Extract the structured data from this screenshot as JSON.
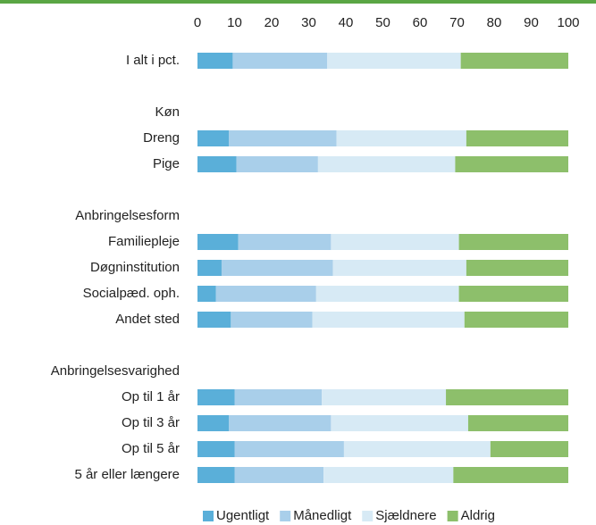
{
  "chart_data": {
    "type": "stacked-barh",
    "categories": [
      "I alt i pct.",
      null,
      "Køn",
      "Dreng",
      "Pige",
      null,
      "Anbringelsesform",
      "Familiepleje",
      "Døgninstitution",
      "Socialpæd. oph.",
      "Andet sted",
      null,
      "Anbringelsesvarighed",
      "Op til 1 år",
      "Op til 3 år",
      "Op til 5 år",
      "5 år eller længere"
    ],
    "series": [
      {
        "name": "Ugentligt",
        "color": "#5aafd9",
        "values": [
          9.5,
          null,
          null,
          8.5,
          10.5,
          null,
          null,
          11,
          6.5,
          5,
          9,
          null,
          null,
          10,
          8.5,
          10,
          10
        ]
      },
      {
        "name": "Månedligt",
        "color": "#a9cfea",
        "values": [
          25.5,
          null,
          null,
          29,
          22,
          null,
          null,
          25,
          30,
          27,
          22,
          null,
          null,
          23.5,
          27.5,
          29.5,
          24
        ]
      },
      {
        "name": "Sjældnere",
        "color": "#d7eaf5",
        "values": [
          36,
          null,
          null,
          35,
          37,
          null,
          null,
          34.5,
          36,
          38.5,
          41,
          null,
          null,
          33.5,
          37,
          39.5,
          35
        ]
      },
      {
        "name": "Aldrig",
        "color": "#8dbf6b",
        "values": [
          29,
          null,
          null,
          27.5,
          30.5,
          null,
          null,
          29.5,
          27.5,
          29.5,
          28,
          null,
          null,
          33,
          27,
          21,
          31
        ]
      }
    ],
    "xlim": [
      0,
      100
    ],
    "xticks": [
      0,
      10,
      20,
      30,
      40,
      50,
      60,
      70,
      80,
      90,
      100
    ],
    "legend": "bottom"
  }
}
